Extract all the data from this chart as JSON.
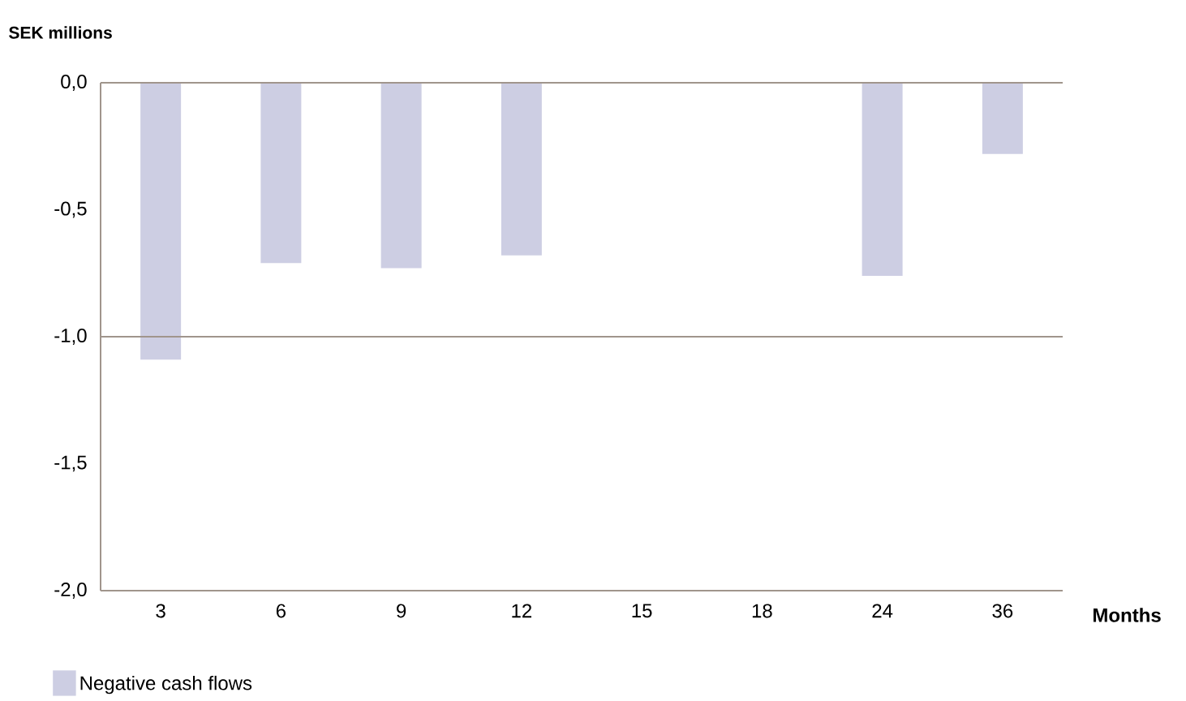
{
  "chart_data": {
    "type": "bar",
    "ylabel": "SEK millions",
    "xlabel": "Months",
    "categories": [
      "3",
      "6",
      "9",
      "12",
      "15",
      "18",
      "24",
      "36"
    ],
    "series": [
      {
        "name": "Negative cash flows",
        "color": "#cdcee3",
        "values": [
          -1.09,
          -0.71,
          -0.73,
          -0.68,
          null,
          null,
          -0.76,
          -0.28
        ]
      }
    ],
    "ylim": [
      -2.0,
      0.0
    ],
    "yticks": [
      {
        "value": 0,
        "label": "0,0"
      },
      {
        "value": -0.5,
        "label": "-0,5"
      },
      {
        "value": -1.0,
        "label": "-1,0"
      },
      {
        "value": -1.5,
        "label": "-1,5"
      },
      {
        "value": -2.0,
        "label": "-2,0"
      }
    ],
    "ref_lines": [
      {
        "axis": "y",
        "value": -1.0,
        "color": "#a0958c"
      }
    ],
    "legend": "bottom left"
  }
}
